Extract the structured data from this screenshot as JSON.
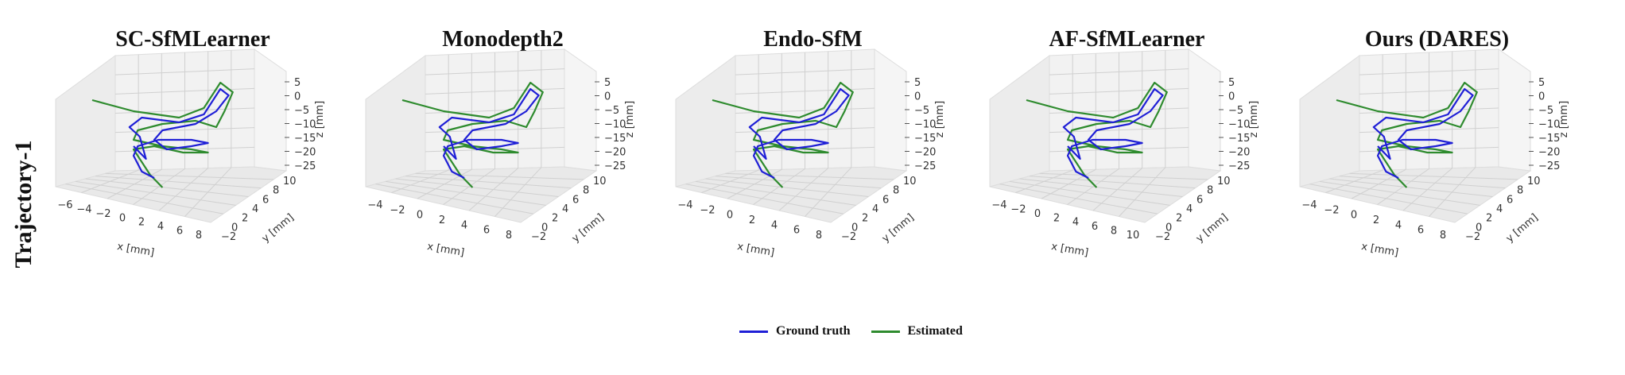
{
  "row_label": "Trajectory-1",
  "legend": {
    "ground_truth": "Ground truth",
    "estimated": "Estimated"
  },
  "colors": {
    "ground_truth": "#1f1fd6",
    "estimated": "#2e8b2e"
  },
  "panels": [
    {
      "title": "SC-SfMLearner",
      "x_ticks": [
        "−6",
        "−4",
        "−2",
        "0",
        "2",
        "4",
        "6",
        "8"
      ]
    },
    {
      "title": "Monodepth2",
      "x_ticks": [
        "−4",
        "−2",
        "0",
        "2",
        "4",
        "6",
        "8"
      ]
    },
    {
      "title": "Endo-SfM",
      "x_ticks": [
        "−4",
        "−2",
        "0",
        "2",
        "4",
        "6",
        "8"
      ]
    },
    {
      "title": "AF-SfMLearner",
      "x_ticks": [
        "−4",
        "−2",
        "0",
        "2",
        "4",
        "6",
        "8",
        "10"
      ]
    },
    {
      "title": "Ours (DARES)",
      "x_ticks": [
        "−4",
        "−2",
        "0",
        "2",
        "4",
        "6",
        "8"
      ]
    }
  ],
  "axes": {
    "xlabel": "x [mm]",
    "ylabel": "y [mm]",
    "zlabel": "z [mm]",
    "y_ticks": [
      "−2",
      "0",
      "2",
      "4",
      "6",
      "8",
      "10"
    ],
    "z_ticks": [
      "5",
      "0",
      "−5",
      "−10",
      "−15",
      "−20",
      "−25"
    ]
  },
  "chart_data": [
    {
      "type": "line",
      "title": "SC-SfMLearner",
      "xlabel": "x [mm]",
      "ylabel": "y [mm]",
      "zlabel": "z [mm]",
      "xlim": [
        -6,
        8
      ],
      "ylim": [
        -2,
        10
      ],
      "zlim": [
        -25,
        5
      ],
      "series": [
        {
          "name": "Ground truth"
        },
        {
          "name": "Estimated"
        }
      ]
    },
    {
      "type": "line",
      "title": "Monodepth2",
      "xlabel": "x [mm]",
      "ylabel": "y [mm]",
      "zlabel": "z [mm]",
      "xlim": [
        -4,
        8
      ],
      "ylim": [
        -2,
        10
      ],
      "zlim": [
        -25,
        5
      ],
      "series": [
        {
          "name": "Ground truth"
        },
        {
          "name": "Estimated"
        }
      ]
    },
    {
      "type": "line",
      "title": "Endo-SfM",
      "xlabel": "x [mm]",
      "ylabel": "y [mm]",
      "zlabel": "z [mm]",
      "xlim": [
        -4,
        8
      ],
      "ylim": [
        -2,
        10
      ],
      "zlim": [
        -25,
        5
      ],
      "series": [
        {
          "name": "Ground truth"
        },
        {
          "name": "Estimated"
        }
      ]
    },
    {
      "type": "line",
      "title": "AF-SfMLearner",
      "xlabel": "x [mm]",
      "ylabel": "y [mm]",
      "zlabel": "z [mm]",
      "xlim": [
        -4,
        10
      ],
      "ylim": [
        -2,
        10
      ],
      "zlim": [
        -25,
        5
      ],
      "series": [
        {
          "name": "Ground truth"
        },
        {
          "name": "Estimated"
        }
      ]
    },
    {
      "type": "line",
      "title": "Ours (DARES)",
      "xlabel": "x [mm]",
      "ylabel": "y [mm]",
      "zlabel": "z [mm]",
      "xlim": [
        -4,
        8
      ],
      "ylim": [
        -2,
        10
      ],
      "zlim": [
        -25,
        5
      ],
      "series": [
        {
          "name": "Ground truth"
        },
        {
          "name": "Estimated"
        }
      ]
    }
  ]
}
